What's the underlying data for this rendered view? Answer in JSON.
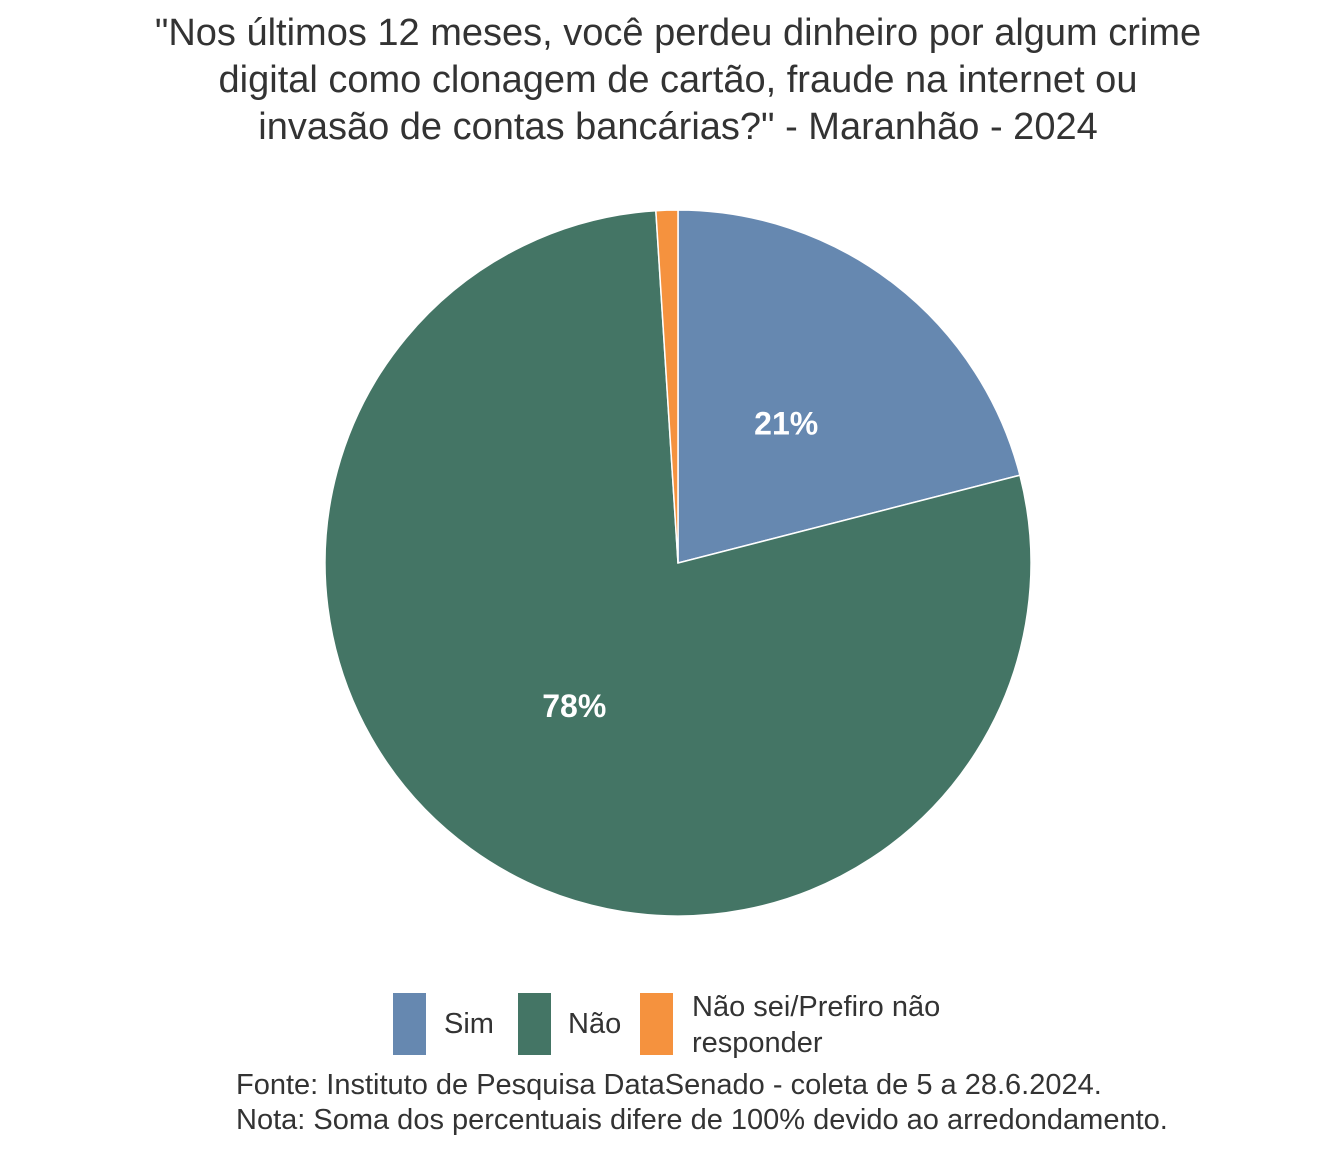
{
  "chart_data": {
    "type": "pie",
    "title_lines": [
      "\"Nos últimos 12 meses, você perdeu dinheiro por algum crime",
      "digital como clonagem de cartão, fraude na internet ou",
      "invasão de contas bancárias?\" - Maranhão - 2024"
    ],
    "categories": [
      "Sim",
      "Não",
      "Não sei/Prefiro não responder"
    ],
    "values": [
      21,
      78,
      1
    ],
    "labels": [
      "21%",
      "78%",
      ""
    ],
    "colors": [
      "#6688b0",
      "#447565",
      "#f5923e"
    ],
    "legend": {
      "position": "bottom",
      "entries": [
        {
          "label_lines": [
            "Sim"
          ],
          "color": "#6688b0"
        },
        {
          "label_lines": [
            "Não"
          ],
          "color": "#447565"
        },
        {
          "label_lines": [
            "Não sei/Prefiro não",
            "responder"
          ],
          "color": "#f5923e"
        }
      ]
    },
    "caption_lines": [
      "Fonte: Instituto de Pesquisa DataSenado - coleta de 5 a 28.6.2024.",
      "Nota: Soma dos percentuais difere de 100% devido ao arredondamento."
    ]
  }
}
